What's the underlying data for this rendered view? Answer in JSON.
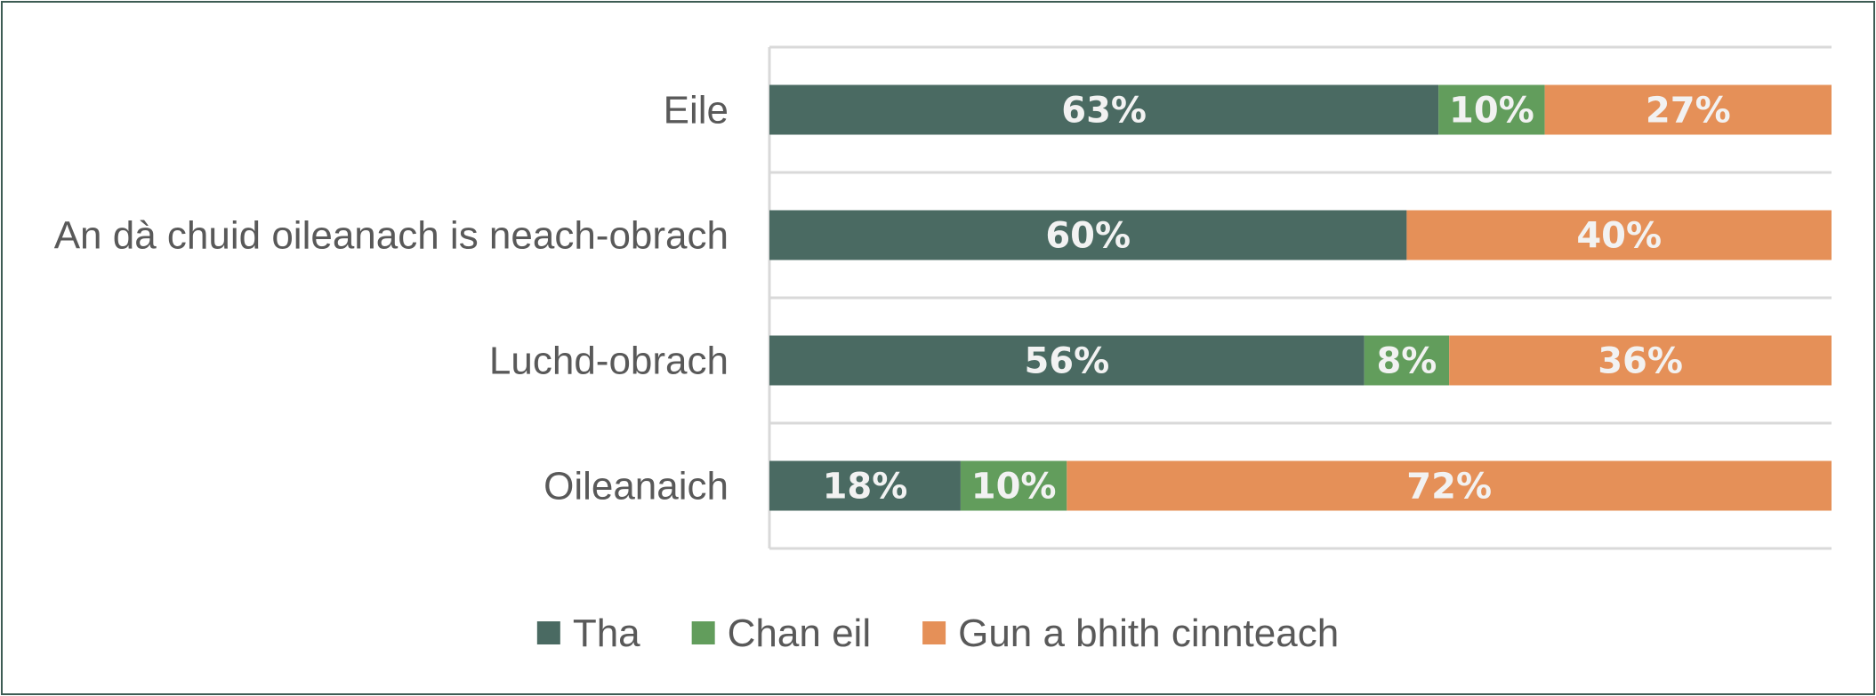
{
  "chart_data": {
    "type": "bar",
    "orientation": "horizontal",
    "stacked": "percent",
    "categories": [
      "Eile",
      "An dà chuid oileanach is neach-obrach",
      "Luchd-obrach",
      "Oileanaich"
    ],
    "series": [
      {
        "name": "Tha",
        "color": "#4a6a62",
        "values": [
          63,
          60,
          56,
          18
        ],
        "labels": [
          "63%",
          "60%",
          "56%",
          "18%"
        ]
      },
      {
        "name": "Chan eil",
        "color": "#629d5c",
        "values": [
          10,
          0,
          8,
          10
        ],
        "labels": [
          "10%",
          "",
          "8%",
          "10%"
        ]
      },
      {
        "name": "Gun a bhith cinnteach",
        "color": "#e59058",
        "values": [
          27,
          40,
          36,
          72
        ],
        "labels": [
          "27%",
          "40%",
          "36%",
          "72%"
        ]
      }
    ],
    "xlim": [
      0,
      100
    ],
    "grid": true,
    "legend_position": "bottom"
  }
}
